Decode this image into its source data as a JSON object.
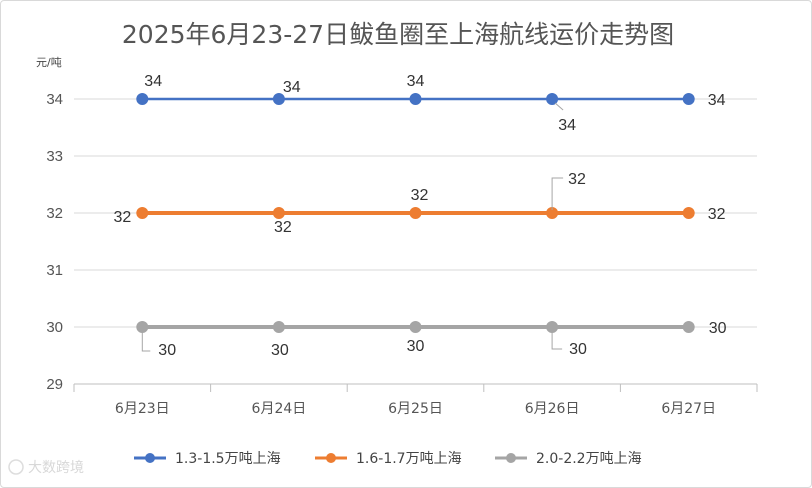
{
  "chart_data": {
    "type": "line",
    "title": "2025年6月23-27日鲅鱼圈至上海航线运价走势图",
    "ylabel": "元/吨",
    "xlabel": "",
    "ylim": [
      29,
      34.5
    ],
    "yticks": [
      29,
      30,
      31,
      32,
      33,
      34
    ],
    "categories": [
      "6月23日",
      "6月24日",
      "6月25日",
      "6月26日",
      "6月27日"
    ],
    "grid": true,
    "legend_position": "bottom",
    "series": [
      {
        "name": "1.3-1.5万吨上海",
        "color": "#4472C4",
        "values": [
          34,
          34,
          34,
          34,
          34
        ],
        "labels": [
          "34",
          "34",
          "34",
          "34",
          "34"
        ]
      },
      {
        "name": "1.6-1.7万吨上海",
        "color": "#ED7D31",
        "values": [
          32,
          32,
          32,
          32,
          32
        ],
        "labels": [
          "32",
          "32",
          "32",
          "32",
          "32"
        ]
      },
      {
        "name": "2.0-2.2万吨上海",
        "color": "#A5A5A5",
        "values": [
          30,
          30,
          30,
          30,
          30
        ],
        "labels": [
          "30",
          "30",
          "30",
          "30",
          "30"
        ]
      }
    ]
  },
  "watermark": "大数跨境"
}
